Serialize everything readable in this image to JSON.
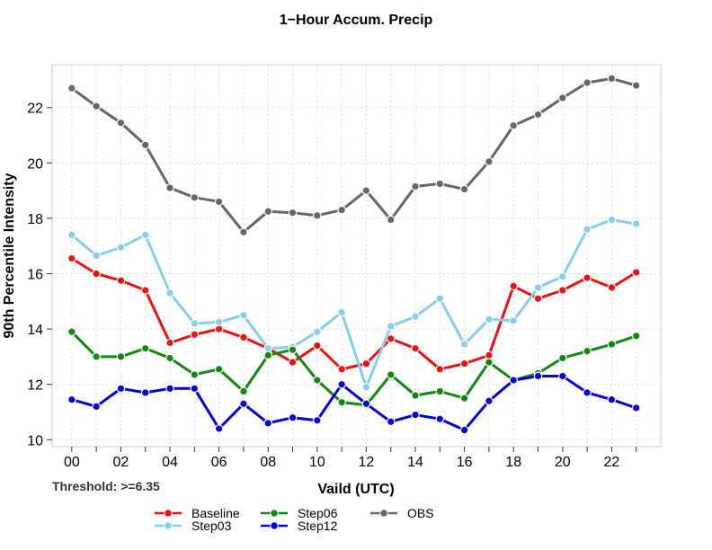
{
  "chart_data": {
    "type": "line",
    "title": "1−Hour Accum. Precip",
    "xlabel": "Vaild (UTC)",
    "ylabel": "90th Percentile Intensity",
    "annotation": "Threshold: >=6.35",
    "x": [
      0,
      1,
      2,
      3,
      4,
      5,
      6,
      7,
      8,
      9,
      10,
      11,
      12,
      13,
      14,
      15,
      16,
      17,
      18,
      19,
      20,
      21,
      22,
      23
    ],
    "x_tick_labels": [
      "00",
      "02",
      "04",
      "06",
      "08",
      "10",
      "12",
      "14",
      "16",
      "18",
      "20",
      "22"
    ],
    "y_ticks": [
      10,
      12,
      14,
      16,
      18,
      20,
      22
    ],
    "xlim": [
      -0.8,
      24.0
    ],
    "ylim": [
      9.75,
      23.55
    ],
    "grid": true,
    "legend_position": "bottom",
    "series": [
      {
        "name": "Baseline",
        "color": "#ee1111",
        "values": [
          16.55,
          16.0,
          15.75,
          15.4,
          13.5,
          13.8,
          14.0,
          13.7,
          13.3,
          12.8,
          13.4,
          12.55,
          12.75,
          13.65,
          13.3,
          12.55,
          12.75,
          13.05,
          15.55,
          15.1,
          15.4,
          15.85,
          15.5,
          16.05
        ]
      },
      {
        "name": "Step03",
        "color": "#87ceeb",
        "values": [
          17.4,
          16.65,
          16.95,
          17.4,
          15.3,
          14.2,
          14.25,
          14.5,
          13.3,
          13.35,
          13.9,
          14.6,
          11.9,
          14.1,
          14.45,
          15.1,
          13.45,
          14.35,
          14.3,
          15.5,
          15.9,
          17.6,
          17.95,
          17.8
        ]
      },
      {
        "name": "Step06",
        "color": "#118811",
        "values": [
          13.9,
          13.0,
          13.0,
          13.3,
          12.95,
          12.35,
          12.55,
          11.75,
          13.05,
          13.25,
          12.15,
          11.35,
          11.25,
          12.35,
          11.6,
          11.75,
          11.5,
          12.8,
          12.15,
          12.4,
          12.95,
          13.2,
          13.45,
          13.75
        ]
      },
      {
        "name": "Step12",
        "color": "#0000dd",
        "values": [
          11.45,
          11.2,
          11.85,
          11.7,
          11.85,
          11.85,
          10.4,
          11.3,
          10.6,
          10.8,
          10.7,
          12.0,
          11.3,
          10.65,
          10.9,
          10.75,
          10.35,
          11.4,
          12.15,
          12.3,
          12.3,
          11.7,
          11.45,
          11.15
        ]
      },
      {
        "name": "OBS",
        "color": "#666666",
        "values": [
          22.7,
          22.05,
          21.45,
          20.65,
          19.1,
          18.75,
          18.6,
          17.5,
          18.25,
          18.2,
          18.1,
          18.3,
          19.0,
          17.95,
          19.15,
          19.25,
          19.05,
          20.05,
          21.35,
          21.75,
          22.35,
          22.9,
          23.05,
          22.8
        ]
      }
    ]
  }
}
